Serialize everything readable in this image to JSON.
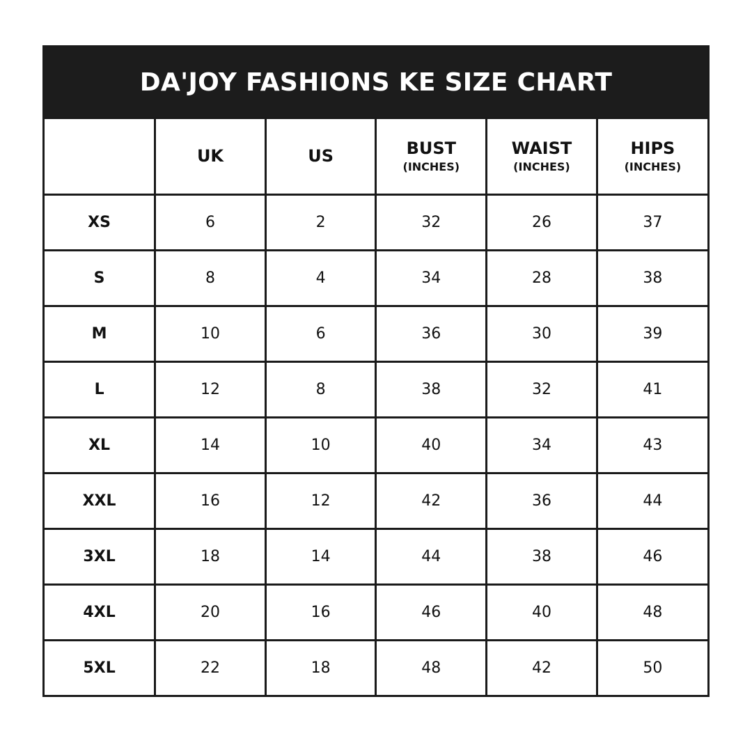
{
  "title": "DA'JOY FASHIONS KE SIZE CHART",
  "columns": [
    {
      "label": "",
      "unit": ""
    },
    {
      "label": "UK",
      "unit": ""
    },
    {
      "label": "US",
      "unit": ""
    },
    {
      "label": "BUST",
      "unit": "(INCHES)"
    },
    {
      "label": "WAIST",
      "unit": "(INCHES)"
    },
    {
      "label": "HIPS",
      "unit": "(INCHES)"
    }
  ],
  "rows": [
    [
      "XS",
      "6",
      "2",
      "32",
      "26",
      "37"
    ],
    [
      "S",
      "8",
      "4",
      "34",
      "28",
      "38"
    ],
    [
      "M",
      "10",
      "6",
      "36",
      "30",
      "39"
    ],
    [
      "L",
      "12",
      "8",
      "38",
      "32",
      "41"
    ],
    [
      "XL",
      "14",
      "10",
      "40",
      "34",
      "43"
    ],
    [
      "XXL",
      "16",
      "12",
      "42",
      "36",
      "44"
    ],
    [
      "3XL",
      "18",
      "14",
      "44",
      "38",
      "46"
    ],
    [
      "4XL",
      "20",
      "16",
      "46",
      "40",
      "48"
    ],
    [
      "5XL",
      "22",
      "18",
      "48",
      "42",
      "50"
    ]
  ],
  "colors": {
    "header_bg": "#1c1c1c",
    "header_text": "#ffffff",
    "border": "#1a1a1a"
  }
}
